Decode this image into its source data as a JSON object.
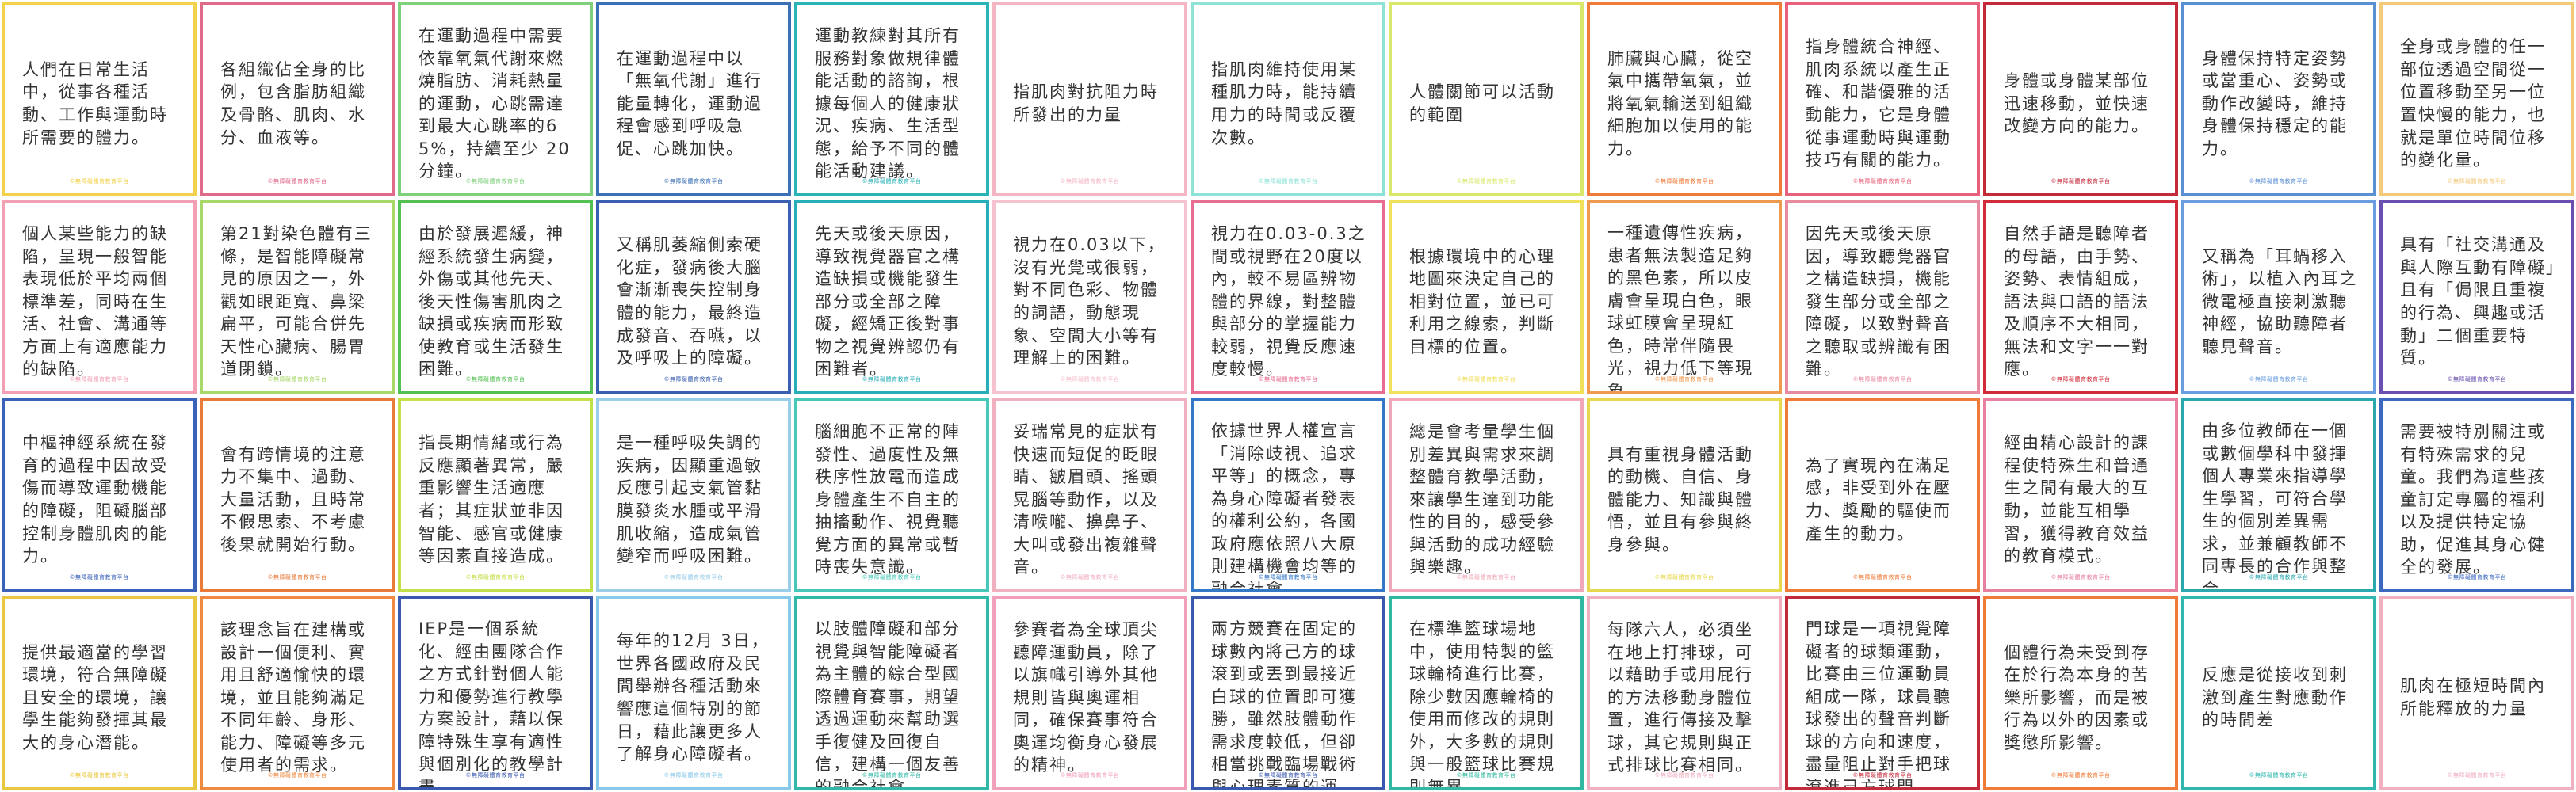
{
  "footer_text": "©無障礙體育教育平台",
  "cards": [
    {
      "text": "人們在日常生活中，從事各種活動、工作與運動時所需要的體力。",
      "color": "#f2d14b"
    },
    {
      "text": "各組織佔全身的比例，包含脂肪組織及骨骼、肌肉、水分、血液等。",
      "color": "#e06a8a"
    },
    {
      "text": "在運動過程中需要依靠氧氣代謝來燃燒脂肪、消耗熱量的運動，心跳需達到最大心跳率的65%，持續至少 20 分鐘。",
      "color": "#7fd07a"
    },
    {
      "text": "在運動過程中以「無氧代謝」進行能量轉化，運動過程會感到呼吸急促、心跳加快。",
      "color": "#3b6fb6"
    },
    {
      "text": "運動教練對其所有服務對象做規律體能活動的諮詢，根據每個人的健康狀況、疾病、生活型態，給予不同的體能活動建議。",
      "color": "#2bb3b8"
    },
    {
      "text": "指肌肉對抗阻力時所發出的力量",
      "color": "#f5b6c4"
    },
    {
      "text": "指肌肉維持使用某種肌力時，能持續用力的時間或反覆次數。",
      "color": "#8fe3d6"
    },
    {
      "text": "人體關節可以活動的範圍",
      "color": "#d9e86a"
    },
    {
      "text": "肺臟與心臟，從空氣中攜帶氧氣，並將氧氣輸送到組織細胞加以使用的能力。",
      "color": "#f07a38"
    },
    {
      "text": "指身體統合神經、肌肉系統以產生正確、和諧優雅的活動能力，它是身體從事運動時與運動技巧有關的能力。",
      "color": "#e8607a"
    },
    {
      "text": "身體或身體某部位迅速移動，並快速改變方向的能力。",
      "color": "#c42a3a"
    },
    {
      "text": "身體保持特定姿勢或當重心、姿勢或動作改變時，維持身體保持穩定的能力。",
      "color": "#5b8fd4"
    },
    {
      "text": "全身或身體的任一部位透過空間從一位置移動至另一位置快慢的能力，也就是單位時間位移的變化量。",
      "color": "#f3c97a"
    },
    {
      "text": "個人某些能力的缺陷，呈現一般智能表現低於平均兩個標準差，同時在生活、社會、溝通等方面上有適應能力的缺陷。",
      "color": "#f3a0b4"
    },
    {
      "text": "第21對染色體有三條，是智能障礙常見的原因之一，外觀如眼距寬、鼻梁扁平，可能合併先天性心臟病、腸胃道閉鎖。",
      "color": "#a8d86a"
    },
    {
      "text": "由於發展遲緩，神經系統發生病變，外傷或其他先天、後天性傷害肌肉之缺損或疾病而形致使教育或生活發生困難。",
      "color": "#52c052"
    },
    {
      "text": "又稱肌萎縮側索硬化症，發病後大腦會漸漸喪失控制身體的能力，最終造成發音、吞嚥，以及呼吸上的障礙。",
      "color": "#3a5fb0"
    },
    {
      "text": "先天或後天原因，導致視覺器官之構造缺損或機能發生部分或全部之障礙，經矯正後對事物之視覺辨認仍有困難者。",
      "color": "#28aeb8"
    },
    {
      "text": "視力在0.03以下，沒有光覺或很弱，對不同色彩、物體的詞語，動態現象、空間大小等有理解上的困難。",
      "color": "#f7c2cf"
    },
    {
      "text": "視力在0.03-0.3之間或視野在20度以內，較不易區辨物體的界線，對整體與部分的掌握能力較弱，視覺反應速度較慢。",
      "color": "#e86d92"
    },
    {
      "text": "根據環境中的心理地圖來決定自己的相對位置，並已可利用之線索，判斷目標的位置。",
      "color": "#f0e05a"
    },
    {
      "text": "一種遺傳性疾病，患者無法製造足夠的黑色素，所以皮膚會呈現白色，眼球虹膜會呈現紅色，時常伴隨畏光，視力低下等現象。",
      "color": "#f09a50"
    },
    {
      "text": "因先天或後天原因，導致聽覺器官之構造缺損，機能發生部分或全部之障礙，以致對聲音之聽取或辨識有困難。",
      "color": "#e88aa0"
    },
    {
      "text": "自然手語是聽障者的母語，由手勢、姿勢、表情組成，語法與口語的語法及順序不大相同，無法和文字一一對應。",
      "color": "#d22c3a"
    },
    {
      "text": "又稱為「耳蝸移入術」，以植入內耳之微電極直接刺激聽神經，協助聽障者聽見聲音。",
      "color": "#6a9ee0"
    },
    {
      "text": "具有「社交溝通及與人際互動有障礙」且有「侷限且重複的行為、興趣或活動」二個重要特質。",
      "color": "#6a4fb0"
    },
    {
      "text": "中樞神經系統在發育的過程中因故受傷而導致運動機能的障礙，阻礙腦部控制身體肌肉的能力。",
      "color": "#3a62b8"
    },
    {
      "text": "會有跨情境的注意力不集中、過動、大量活動，且時常不假思索、不考慮後果就開始行動。",
      "color": "#e87a3a"
    },
    {
      "text": "指長期情緒或行為反應顯著異常，嚴重影響生活適應者；其症狀並非因智能、感官或健康等因素直接造成。",
      "color": "#c2e04a"
    },
    {
      "text": "是一種呼吸失調的疾病，因顯重過敏反應引起支氣管黏膜發炎水腫或平滑肌收縮，造成氣管變窄而呼吸困難。",
      "color": "#9acde8"
    },
    {
      "text": "腦細胞不正常的陣發性、過度性及無秩序性放電而造成身體產生不自主的抽搐動作、視覺聽覺方面的異常或暫時喪失意識。",
      "color": "#48c8b8"
    },
    {
      "text": "妥瑞常見的症狀有快速而短促的眨眼睛、皺眉頭、搖頭晃腦等動作，以及清喉嚨、擤鼻子、大叫或發出複雜聲音。",
      "color": "#f0b0c0"
    },
    {
      "text": "依據世界人權宣言「消除歧視、追求平等」的概念，專為身心障礙者發表的權利公約，各國政府應依照八大原則建構機會均等的融合社會。",
      "color": "#3478c8"
    },
    {
      "text": "總是會考量學生個別差異與需求來調整體育教學活動，來讓學生達到功能性的目的，感受參與活動的成功經驗與樂趣。",
      "color": "#f0a8b8"
    },
    {
      "text": "具有重視身體活動的動機、自信、身體能力、知識與體悟，並且有參與終身參與。",
      "color": "#e8d850"
    },
    {
      "text": "為了實現內在滿足感，非受到外在壓力、獎勵的驅使而產生的動力。",
      "color": "#f07a38"
    },
    {
      "text": "經由精心設計的課程使特殊生和普通生之間有最大的互動，並能互相學習，獲得教育效益的教育模式。",
      "color": "#e880a0"
    },
    {
      "text": "由多位教師在一個或數個學科中發揮個人專業來指導學生學習，可符合學生的個別差異需求，並兼顧教師不同專長的合作與整合",
      "color": "#2aa8b0"
    },
    {
      "text": "需要被特別關注或有特殊需求的兒童。我們為這些孩童訂定專屬的福利以及提供特定協助，促進其身心健全的發展。",
      "color": "#3c68c0"
    },
    {
      "text": "提供最適當的學習環境，符合無障礙且安全的環境，讓學生能夠發揮其最大的身心潛能。",
      "color": "#e8c840"
    },
    {
      "text": "該理念旨在建構或設計一個便利、實用且舒適愉快的環境，並且能夠滿足不同年齡、身形、能力、障礙等多元使用者的需求。",
      "color": "#f08a40"
    },
    {
      "text": "IEP是一個系統化、經由團隊合作之方式針對個人能力和優勢進行教學方案設計，藉以保障特殊生享有適性與個別化的教學計畫。",
      "color": "#3a5ab0"
    },
    {
      "text": "每年的12月 3日，世界各國政府及民間舉辦各種活動來響應這個特別的節日，藉此讓更多人了解身心障礙者。",
      "color": "#88c8e8"
    },
    {
      "text": "以肢體障礙和部分視覺與智能障礙者為主體的綜合型國際體育賽事，期望透過運動來幫助選手復健及回復自信，建構一個友善的融合社會。",
      "color": "#30b8a8"
    },
    {
      "text": "參賽者為全球頂尖聽障運動員，除了以旗幟引導外其他規則皆與奧運相同，確保賽事符合奧運均衡身心發展的精神。",
      "color": "#f0a0b8"
    },
    {
      "text": "兩方競賽在固定的球數內將己方的球滾到或丟到最接近白球的位置即可獲勝，雖然肢體動作需求度較低，但卻相當挑戰臨場戰術與心理素質的運動。",
      "color": "#3a5ab0"
    },
    {
      "text": "在標準籃球場地中，使用特製的籃球輪椅進行比賽，除少數因應輪椅的使用而修改的規則外，大多數的規則與一般籃球比賽規則無異。",
      "color": "#30b8a0"
    },
    {
      "text": "每隊六人，必須坐在地上打排球，可以藉助手或用屁行的方法移動身體位置，進行傳接及擊球，其它規則與正式排球比賽相同。",
      "color": "#f0b0c0"
    },
    {
      "text": "門球是一項視覺障礙者的球類運動，比賽由三位運動員組成一隊，球員聽球發出的聲音判斷球的方向和速度，盡量阻止對手把球滾進己方球門。",
      "color": "#c42a3a"
    },
    {
      "text": "個體行為未受到存在於行為本身的苦樂所影響，而是被行為以外的因素或獎懲所影響。",
      "color": "#f07a38"
    },
    {
      "text": "反應是從接收到刺激到產生對應動作的時間差",
      "color": "#30b8b0"
    },
    {
      "text": "肌肉在極短時間內所能釋放的力量",
      "color": "#f0b0c0"
    }
  ]
}
